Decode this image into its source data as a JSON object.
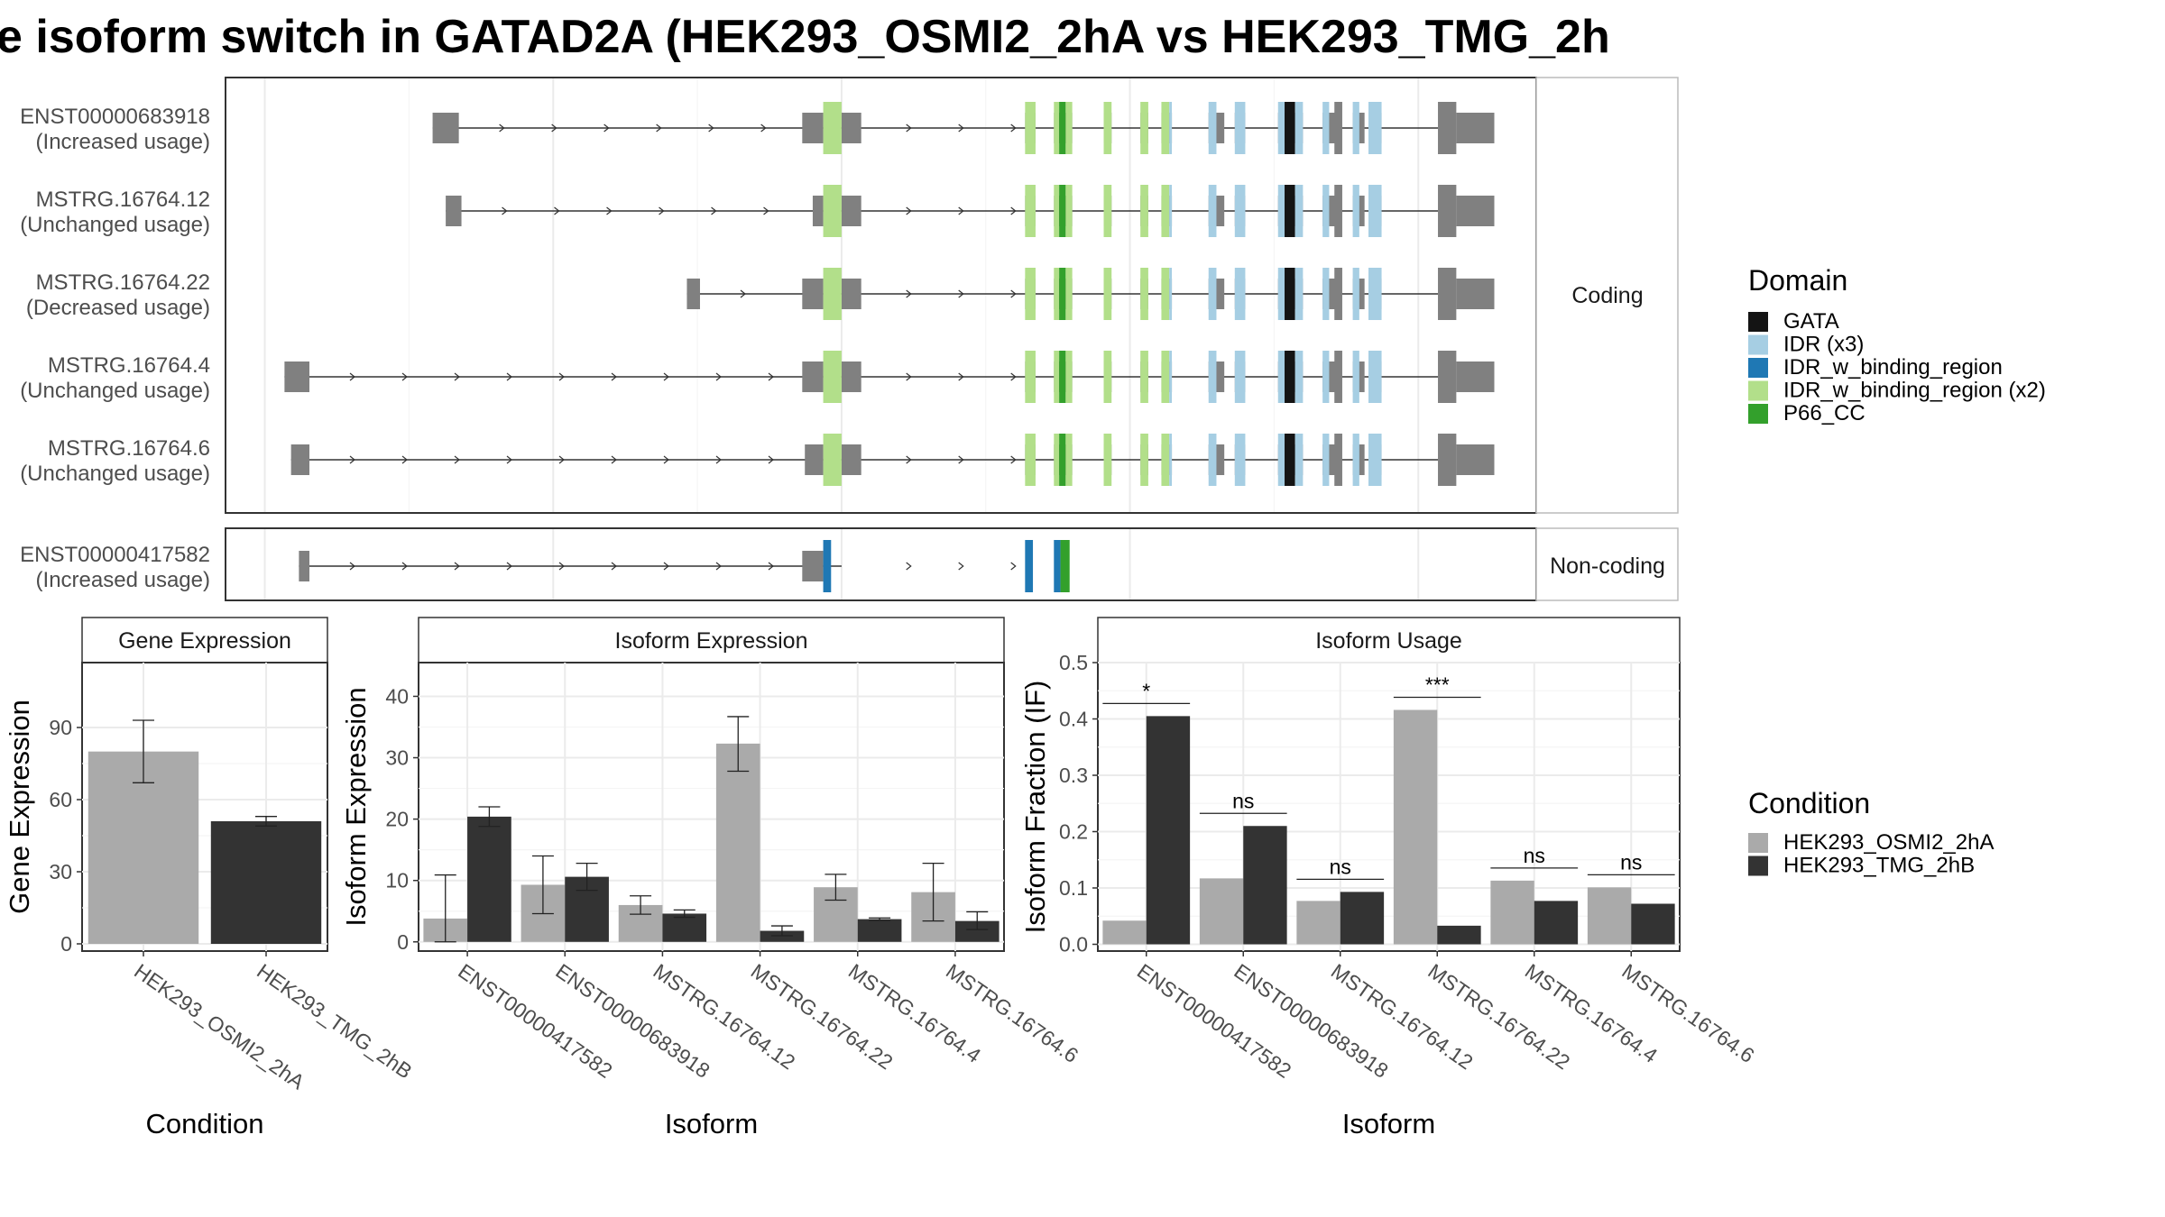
{
  "title": "e isoform switch in GATAD2A (HEK293_OSMI2_2hA vs HEK293_TMG_2h",
  "colors": {
    "exon": "#808080",
    "cond_a": "#aaaaaa",
    "cond_b": "#333333",
    "GATA": "#141414",
    "IDR_x3": "#a6cee3",
    "IDR_w_binding_region": "#1f78b4",
    "IDR_w_binding_region_x2": "#b2df8a",
    "P66_CC": "#33a02c"
  },
  "structure": {
    "facets": {
      "coding": "Coding",
      "noncoding": "Non-coding"
    },
    "transcripts": [
      {
        "id": "ENST00000683918",
        "usage": "(Increased usage)",
        "start": 0.158,
        "first_exon_end": 0.178,
        "exon2_start": 0.44
      },
      {
        "id": "MSTRG.16764.12",
        "usage": "(Unchanged usage)",
        "start": 0.168,
        "first_exon_end": 0.18,
        "exon2_start": 0.448
      },
      {
        "id": "MSTRG.16764.22",
        "usage": "(Decreased usage)",
        "start": 0.352,
        "first_exon_end": 0.362,
        "exon2_start": 0.44
      },
      {
        "id": "MSTRG.16764.4",
        "usage": "(Unchanged usage)",
        "start": 0.045,
        "first_exon_end": 0.064,
        "exon2_start": 0.44
      },
      {
        "id": "MSTRG.16764.6",
        "usage": "(Unchanged usage)",
        "start": 0.05,
        "first_exon_end": 0.064,
        "exon2_start": 0.442
      }
    ],
    "noncoding_transcript": {
      "id": "ENST00000417582",
      "usage": "(Increased usage)",
      "start": 0.056,
      "first_exon_end": 0.064,
      "exon2_start": 0.44
    }
  },
  "domain_legend": {
    "title": "Domain",
    "items": [
      {
        "label": "GATA",
        "key": "GATA"
      },
      {
        "label": "IDR (x3)",
        "key": "IDR_x3"
      },
      {
        "label": "IDR_w_binding_region",
        "key": "IDR_w_binding_region"
      },
      {
        "label": "IDR_w_binding_region (x2)",
        "key": "IDR_w_binding_region_x2"
      },
      {
        "label": "P66_CC",
        "key": "P66_CC"
      }
    ]
  },
  "condition_legend": {
    "title": "Condition",
    "items": [
      {
        "label": "HEK293_OSMI2_2hA",
        "key": "cond_a"
      },
      {
        "label": "HEK293_TMG_2hB",
        "key": "cond_b"
      }
    ]
  },
  "chart_data": [
    {
      "type": "bar",
      "title": "Gene Expression",
      "xlabel": "Condition",
      "ylabel": "Gene Expression",
      "categories": [
        "HEK293_OSMI2_2hA",
        "HEK293_TMG_2hB"
      ],
      "values": [
        80,
        51
      ],
      "error": [
        [
          67,
          93
        ],
        [
          49,
          53
        ]
      ],
      "ylim": [
        -3,
        117
      ],
      "yticks": [
        0,
        30,
        60,
        90
      ]
    },
    {
      "type": "bar",
      "title": "Isoform Expression",
      "xlabel": "Isoform",
      "ylabel": "Isoform Expression",
      "categories": [
        "ENST00000417582",
        "ENST00000683918",
        "MSTRG.16764.12",
        "MSTRG.16764.22",
        "MSTRG.16764.4",
        "MSTRG.16764.6"
      ],
      "series": [
        {
          "name": "HEK293_OSMI2_2hA",
          "values": [
            3.8,
            9.3,
            6.0,
            32.3,
            8.9,
            8.1
          ],
          "error": [
            [
              0,
              10.9
            ],
            [
              4.6,
              14.0
            ],
            [
              4.5,
              7.5
            ],
            [
              27.8,
              36.7
            ],
            [
              6.8,
              11.0
            ],
            [
              3.4,
              12.8
            ]
          ]
        },
        {
          "name": "HEK293_TMG_2hB",
          "values": [
            20.4,
            10.6,
            4.6,
            1.8,
            3.7,
            3.4
          ],
          "error": [
            [
              18.8,
              22.0
            ],
            [
              8.4,
              12.8
            ],
            [
              4.0,
              5.2
            ],
            [
              1.0,
              2.6
            ],
            [
              3.5,
              3.9
            ],
            [
              2.0,
              4.9
            ]
          ]
        }
      ],
      "ylim": [
        -1.5,
        45.5
      ],
      "yticks": [
        0,
        10,
        20,
        30,
        40
      ]
    },
    {
      "type": "bar",
      "title": "Isoform Usage",
      "xlabel": "Isoform",
      "ylabel": "Isoform Fraction (IF)",
      "categories": [
        "ENST00000417582",
        "ENST00000683918",
        "MSTRG.16764.12",
        "MSTRG.16764.22",
        "MSTRG.16764.4",
        "MSTRG.16764.6"
      ],
      "series": [
        {
          "name": "HEK293_OSMI2_2hA",
          "values": [
            0.042,
            0.117,
            0.077,
            0.416,
            0.113,
            0.101
          ]
        },
        {
          "name": "HEK293_TMG_2hB",
          "values": [
            0.405,
            0.21,
            0.093,
            0.033,
            0.077,
            0.072
          ]
        }
      ],
      "significance": [
        "*",
        "ns",
        "ns",
        "***",
        "ns",
        "ns"
      ],
      "ylim": [
        -0.012,
        0.5
      ],
      "yticks": [
        0.0,
        0.1,
        0.2,
        0.3,
        0.4,
        0.5
      ],
      "ytick_labels": [
        "0.0",
        "0.1",
        "0.2",
        "0.3",
        "0.4",
        "0.5"
      ]
    }
  ]
}
